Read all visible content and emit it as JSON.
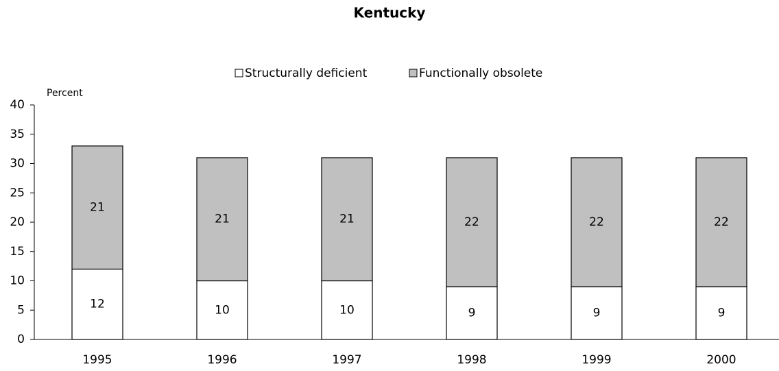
{
  "chart_data": {
    "type": "bar",
    "stacked": true,
    "title": "Kentucky",
    "y_label": "Percent",
    "categories": [
      "1995",
      "1996",
      "1997",
      "1998",
      "1999",
      "2000"
    ],
    "series": [
      {
        "name": "Structurally deficient",
        "color": "#ffffff",
        "values": [
          12,
          10,
          10,
          9,
          9,
          9
        ]
      },
      {
        "name": "Functionally obsolete",
        "color": "#c0c0c0",
        "values": [
          21,
          21,
          21,
          22,
          22,
          22
        ]
      }
    ],
    "ylim": [
      0,
      40
    ],
    "yticks": [
      0,
      5,
      10,
      15,
      20,
      25,
      30,
      35,
      40
    ],
    "legend": "top"
  }
}
